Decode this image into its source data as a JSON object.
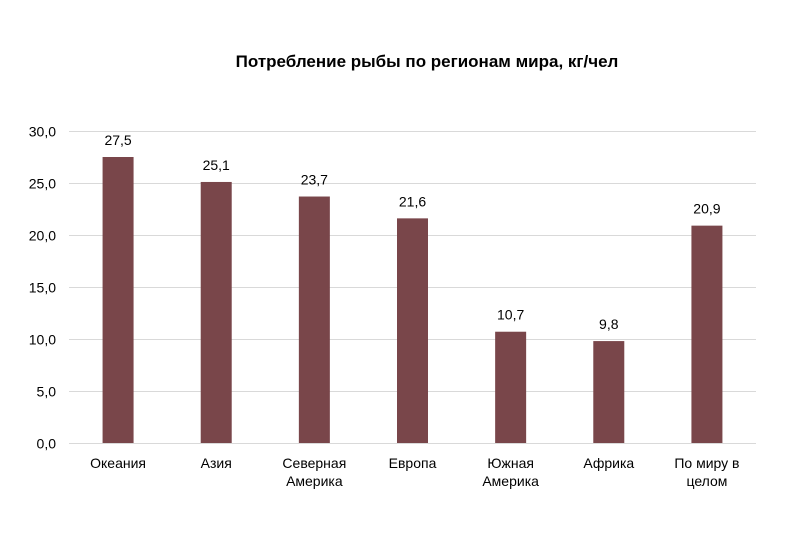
{
  "chart_data": {
    "type": "bar",
    "title": "Потребление рыбы по регионам мира, кг/чел",
    "xlabel": "",
    "ylabel": "",
    "categories": [
      "Океания",
      "Азия",
      "Северная Америка",
      "Европа",
      "Южная Америка",
      "Африка",
      "По миру в целом"
    ],
    "category_lines": [
      [
        "Океания"
      ],
      [
        "Азия"
      ],
      [
        "Северная",
        "Америка"
      ],
      [
        "Европа"
      ],
      [
        "Южная",
        "Америка"
      ],
      [
        "Африка"
      ],
      [
        "По миру в",
        "целом"
      ]
    ],
    "values": [
      27.5,
      25.1,
      23.7,
      21.6,
      10.7,
      9.8,
      20.9
    ],
    "data_labels": [
      "27,5",
      "25,1",
      "23,7",
      "21,6",
      "10,7",
      "9,8",
      "20,9"
    ],
    "ylim": [
      0,
      30
    ],
    "yticks": [
      0,
      5,
      10,
      15,
      20,
      25,
      30
    ],
    "ytick_labels": [
      "0,0",
      "5,0",
      "10,0",
      "15,0",
      "20,0",
      "25,0",
      "30,0"
    ],
    "grid": true,
    "legend": "none",
    "bar_color": "#79464A",
    "grid_color": "#D9D9D9"
  }
}
